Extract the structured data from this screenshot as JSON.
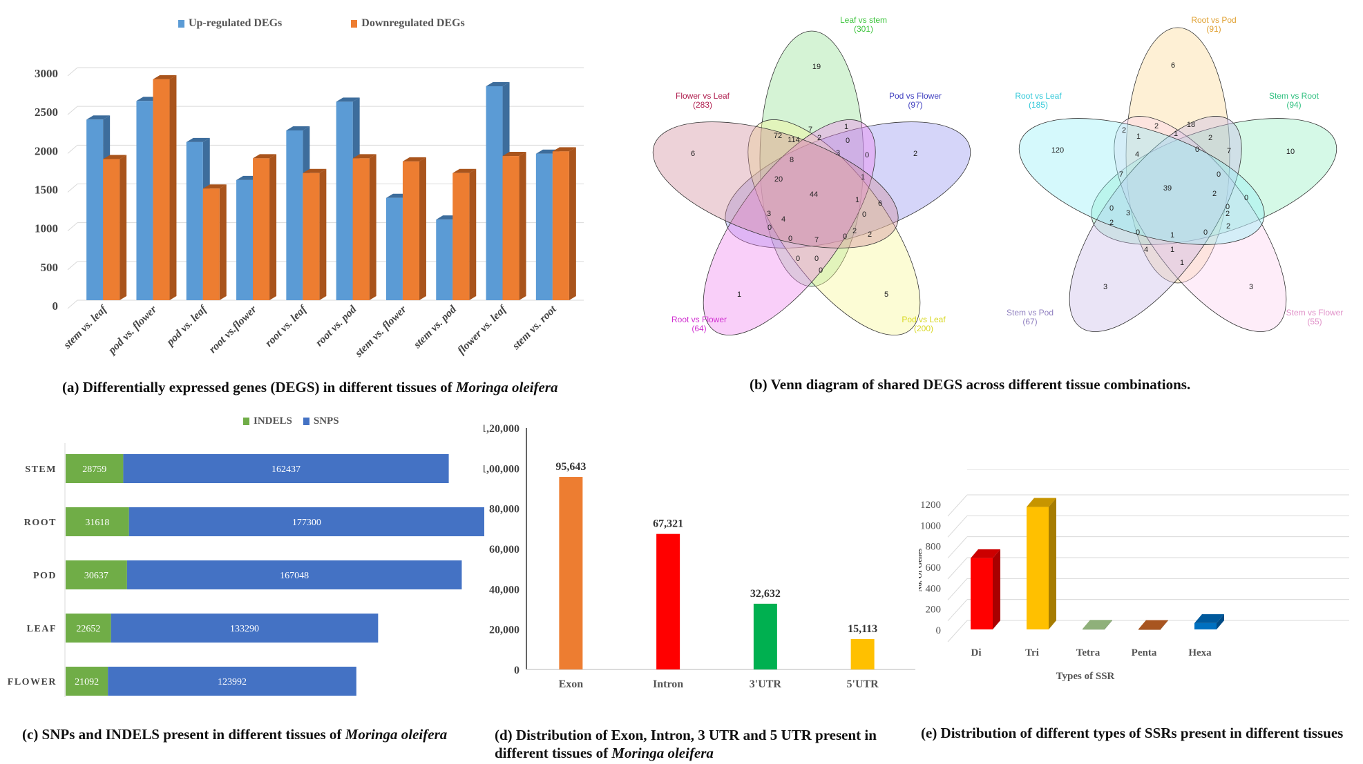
{
  "chart_data": [
    {
      "id": "a",
      "type": "bar",
      "subtype": "grouped-3d",
      "title": "",
      "caption_prefix": "(a) Differentially expressed genes (DEGS)  in different tissues of ",
      "caption_italic": "Moringa oleifera",
      "categories": [
        "stem vs. leaf",
        "pod vs. flower",
        "pod vs. leaf",
        "root vs.flower",
        "root vs. leaf",
        "root vs. pod",
        "stem vs. flower",
        "stem vs. pod",
        "flower vs. leaf",
        "stem vs. root"
      ],
      "series": [
        {
          "name": "Up-regulated DEGs",
          "color": "#5b9bd5",
          "side_color": "#3d6d9c",
          "values": [
            2330,
            2570,
            2040,
            1550,
            2190,
            2560,
            1320,
            1040,
            2760,
            1890
          ]
        },
        {
          "name": "Downregulated DEGs",
          "color": "#ed7d31",
          "side_color": "#a9541c",
          "values": [
            1820,
            2850,
            1440,
            1830,
            1640,
            1830,
            1790,
            1640,
            1860,
            1920
          ]
        }
      ],
      "xlabel": "",
      "ylabel": "",
      "ylim": [
        0,
        3000
      ],
      "yticks": [
        "0",
        "500",
        "1000",
        "1500",
        "2000",
        "2500",
        "3000"
      ],
      "grid": true,
      "legend": "top-center"
    },
    {
      "id": "c",
      "type": "bar",
      "subtype": "stacked-horizontal",
      "caption_prefix": "(c) SNPs and INDELS present in different tissues of ",
      "caption_italic": "Moringa oleifera",
      "categories": [
        "STEM",
        "ROOT",
        "POD",
        "LEAF",
        "FLOWER"
      ],
      "series": [
        {
          "name": "INDELS",
          "color": "#70ad47",
          "values": [
            28759,
            31618,
            30637,
            22652,
            21092
          ]
        },
        {
          "name": "SNPS",
          "color": "#4472c4",
          "values": [
            162437,
            177300,
            167048,
            133290,
            123992
          ]
        }
      ],
      "xlim": [
        0,
        208918
      ],
      "grid": false,
      "legend": "top-center"
    },
    {
      "id": "d",
      "type": "bar",
      "caption_line1": "(d) Distribution of Exon, Intron, 3 UTR and 5 UTR  present in",
      "caption_line2_prefix": "different tissues of ",
      "caption_italic": "Moringa oleifera",
      "categories": [
        "Exon",
        "Intron",
        "3'UTR",
        "5'UTR"
      ],
      "values": [
        95643,
        67321,
        32632,
        15113
      ],
      "value_labels": [
        "95,643",
        "67,321",
        "32,632",
        "15,113"
      ],
      "colors": [
        "#ed7d31",
        "#ff0000",
        "#00b050",
        "#ffc000"
      ],
      "ylim": [
        0,
        120000
      ],
      "yticks": [
        "0",
        "20,000",
        "40,000",
        "60,000",
        "80,000",
        "1,00,000",
        "1,20,000"
      ],
      "grid": false,
      "legend": "none"
    },
    {
      "id": "e",
      "type": "bar",
      "subtype": "3d",
      "caption": "(e) Distribution of different types of SSRs present in different tissues",
      "categories": [
        "Di",
        "Tri",
        "Tetra",
        "Penta",
        "Hexa"
      ],
      "values": [
        680,
        1170,
        5,
        3,
        60
      ],
      "colors": [
        "#ff0000",
        "#ffc000",
        "#7f9f6b",
        "#9c4a14",
        "#0070c0"
      ],
      "side_colors": [
        "#a80000",
        "#a67c00",
        "#5d7a4c",
        "#6d330d",
        "#004b85"
      ],
      "top_colors": [
        "#cc0000",
        "#c79500",
        "#8fb07a",
        "#a85520",
        "#00599c"
      ],
      "xlabel": "Types of SSR",
      "ylabel": "No. Of Genes",
      "ylim": [
        0,
        1200
      ],
      "yticks": [
        "0",
        "200",
        "400",
        "600",
        "800",
        "1000",
        "1200"
      ],
      "grid": true,
      "legend": "none"
    }
  ],
  "venn": {
    "caption": "(b) Venn diagram of shared DEGS across different tissue combinations.",
    "left": {
      "sets": [
        {
          "label": "Leaf vs stem",
          "count": "(301)",
          "color": "#3cc43c",
          "fill": "#90e090"
        },
        {
          "label": "Pod vs Flower",
          "count": "(97)",
          "color": "#4040c0",
          "fill": "#9090f0"
        },
        {
          "label": "Pod vs Leaf",
          "count": "(200)",
          "color": "#d8d820",
          "fill": "#f8f890"
        },
        {
          "label": "Root vs Flower",
          "count": "(64)",
          "color": "#d030d0",
          "fill": "#f080f0"
        },
        {
          "label": "Flower vs Leaf",
          "count": "(283)",
          "color": "#b02050",
          "fill": "#d08898"
        }
      ],
      "numbers": [
        "19",
        "2",
        "5",
        "1",
        "6",
        "72",
        "114",
        "7",
        "2",
        "1",
        "0",
        "3",
        "0",
        "8",
        "20",
        "44",
        "1",
        "1",
        "6",
        "2",
        "3",
        "4",
        "0",
        "0",
        "7",
        "0",
        "2",
        "0",
        "0",
        "0",
        "0"
      ]
    },
    "right": {
      "sets": [
        {
          "label": "Root vs Pod",
          "count": "(91)",
          "color": "#e0a030",
          "fill": "#fcd890"
        },
        {
          "label": "Stem vs Root",
          "count": "(94)",
          "color": "#30c080",
          "fill": "#90f0c0"
        },
        {
          "label": "Stem vs Flower",
          "count": "(55)",
          "color": "#e090c8",
          "fill": "#fcd0f0"
        },
        {
          "label": "Stem vs Pod",
          "count": "(67)",
          "color": "#9080c0",
          "fill": "#c8b8e8"
        },
        {
          "label": "Root vs Leaf",
          "count": "(185)",
          "color": "#30c8d8",
          "fill": "#90f0f8"
        }
      ],
      "numbers": [
        "6",
        "10",
        "3",
        "3",
        "120",
        "2",
        "2",
        "18",
        "1",
        "1",
        "2",
        "4",
        "0",
        "7",
        "7",
        "39",
        "0",
        "2",
        "0",
        "2",
        "0",
        "3",
        "2",
        "0",
        "1",
        "0",
        "2",
        "4",
        "1",
        "1",
        "0"
      ]
    }
  }
}
